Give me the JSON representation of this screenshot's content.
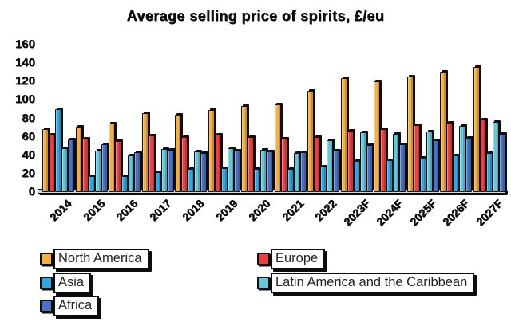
{
  "title": "Average selling price of spirits, £/eu",
  "colors": {
    "north_america": "#F6AE3C",
    "europe": "#EE3E41",
    "asia": "#2FA8E1",
    "latin_america": "#62C9DB",
    "africa": "#4A72C4",
    "outline": "#0d0d0d",
    "floor": "#d9d9d9"
  },
  "chart_data": {
    "type": "bar",
    "title": "Average selling price of spirits, £/eu",
    "xlabel": "",
    "ylabel": "",
    "ylim": [
      0,
      160
    ],
    "yticks": [
      0,
      20,
      40,
      60,
      80,
      100,
      120,
      140,
      160
    ],
    "grid": false,
    "legend_position": "bottom",
    "categories": [
      "2014",
      "2015",
      "2016",
      "2017",
      "2018",
      "2019",
      "2020",
      "2021",
      "2022",
      "2023F",
      "2024F",
      "2025F",
      "2026F",
      "2027F"
    ],
    "series": [
      {
        "name": "North America",
        "color": "#F6AE3C",
        "values": [
          68,
          71,
          74,
          86,
          84,
          89,
          93,
          95,
          110,
          124,
          120,
          125,
          131,
          136
        ]
      },
      {
        "name": "Europe",
        "color": "#EE3E41",
        "values": [
          62,
          58,
          55,
          61,
          60,
          62,
          60,
          58,
          60,
          67,
          68,
          73,
          75,
          79
        ]
      },
      {
        "name": "Asia",
        "color": "#2FA8E1",
        "values": [
          90,
          17,
          17,
          22,
          25,
          26,
          25,
          25,
          28,
          34,
          35,
          37,
          40,
          42
        ]
      },
      {
        "name": "Latin America and the Caribbean",
        "color": "#62C9DB",
        "values": [
          48,
          45,
          40,
          47,
          44,
          48,
          46,
          42,
          56,
          65,
          63,
          66,
          72,
          76
        ]
      },
      {
        "name": "Africa",
        "color": "#4A72C4",
        "values": [
          57,
          52,
          43,
          46,
          42,
          45,
          44,
          43,
          45,
          51,
          52,
          56,
          59,
          63
        ]
      }
    ],
    "legend_columns": [
      [
        "North America",
        "Asia",
        "Africa"
      ],
      [
        "Europe",
        "Latin America and the Caribbean"
      ]
    ]
  }
}
